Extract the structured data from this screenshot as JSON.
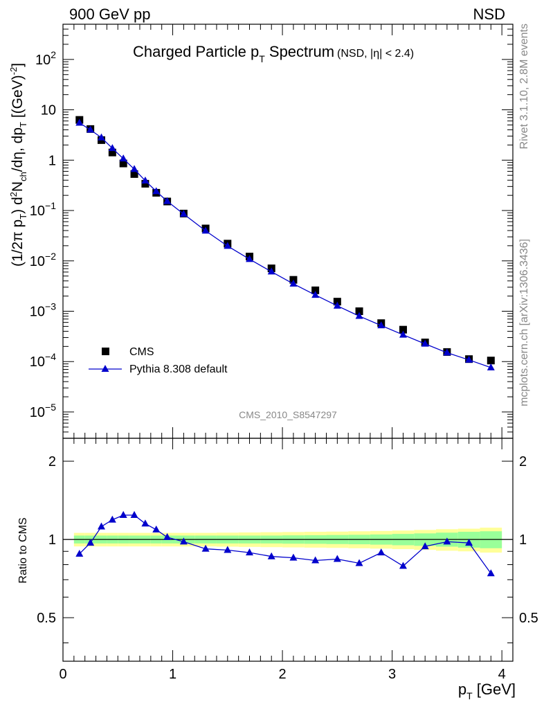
{
  "header": {
    "left": "900 GeV pp",
    "right": "NSD"
  },
  "side_labels": {
    "rivet": "Rivet 3.1.10,  2.8M events",
    "mcplots": "mcplots.cern.ch [arXiv:1306.3436]"
  },
  "chart_data": [
    {
      "type": "scatter",
      "title": "Charged Particle p_T Spectrum",
      "title_suffix": "(NSD, |η| < 2.4)",
      "analysis_label": "CMS_2010_S8547297",
      "ylabel": "(1/2π p_T) d²N_ch/dη, dp_T [(GeV)⁻²]",
      "xlim": [
        0,
        4.1
      ],
      "ylim": [
        3e-06,
        500
      ],
      "yscale": "log",
      "y_ticks": [
        {
          "value": 100.0,
          "label": "10^2"
        },
        {
          "value": 10,
          "label": "10"
        },
        {
          "value": 1,
          "label": "1"
        },
        {
          "value": 0.1,
          "label": "10^-1"
        },
        {
          "value": 0.01,
          "label": "10^-2"
        },
        {
          "value": 0.001,
          "label": "10^-3"
        },
        {
          "value": 0.0001,
          "label": "10^-4"
        },
        {
          "value": 1e-05,
          "label": "10^-5"
        }
      ],
      "legend_position": "bottom-left",
      "series": [
        {
          "name": "CMS",
          "marker": "square",
          "color": "#000000",
          "x": [
            0.15,
            0.25,
            0.35,
            0.45,
            0.55,
            0.65,
            0.75,
            0.85,
            0.95,
            1.1,
            1.3,
            1.5,
            1.7,
            1.9,
            2.1,
            2.3,
            2.5,
            2.7,
            2.9,
            3.1,
            3.3,
            3.5,
            3.7,
            3.9
          ],
          "y": [
            6.3,
            4.15,
            2.5,
            1.42,
            0.86,
            0.53,
            0.34,
            0.225,
            0.151,
            0.087,
            0.044,
            0.022,
            0.0122,
            0.0071,
            0.0042,
            0.0026,
            0.00155,
            0.001,
            0.00058,
            0.00043,
            0.00024,
            0.000155,
            0.000112,
            0.000105
          ]
        },
        {
          "name": "Pythia 8.308 default",
          "marker": "triangle",
          "color": "#0000cc",
          "x": [
            0.15,
            0.25,
            0.35,
            0.45,
            0.55,
            0.65,
            0.75,
            0.85,
            0.95,
            1.1,
            1.3,
            1.5,
            1.7,
            1.9,
            2.1,
            2.3,
            2.5,
            2.7,
            2.9,
            3.1,
            3.3,
            3.5,
            3.7,
            3.9
          ],
          "y": [
            5.5,
            4.0,
            2.8,
            1.72,
            1.07,
            0.66,
            0.39,
            0.24,
            0.153,
            0.085,
            0.0395,
            0.0197,
            0.0108,
            0.0061,
            0.0035,
            0.0021,
            0.00128,
            0.0008,
            0.00052,
            0.00034,
            0.000225,
            0.00015,
            0.000108,
            7.6e-05
          ]
        }
      ]
    },
    {
      "type": "line",
      "ylabel": "Ratio to CMS",
      "xlabel": "p_T [GeV]",
      "xlim": [
        0,
        4.1
      ],
      "ylim": [
        0.34,
        2.45
      ],
      "yscale": "log",
      "x_ticks": [
        0,
        1,
        2,
        3,
        4
      ],
      "y_ticks": [
        {
          "value": 0.5,
          "label": "0.5"
        },
        {
          "value": 1,
          "label": "1"
        },
        {
          "value": 2,
          "label": "2"
        }
      ],
      "band_x_edges": [
        0.1,
        0.2,
        0.3,
        0.4,
        0.5,
        0.6,
        0.7,
        0.8,
        0.9,
        1.0,
        1.2,
        1.4,
        1.6,
        1.8,
        2.0,
        2.2,
        2.4,
        2.6,
        2.8,
        3.0,
        3.2,
        3.4,
        3.6,
        3.8,
        4.0
      ],
      "band_stat_halfwidth": [
        0.035,
        0.035,
        0.035,
        0.035,
        0.035,
        0.035,
        0.035,
        0.035,
        0.035,
        0.035,
        0.035,
        0.035,
        0.035,
        0.035,
        0.037,
        0.038,
        0.04,
        0.042,
        0.045,
        0.05,
        0.055,
        0.062,
        0.07,
        0.075
      ],
      "band_total_halfwidth": [
        0.06,
        0.06,
        0.06,
        0.06,
        0.06,
        0.06,
        0.06,
        0.06,
        0.06,
        0.06,
        0.06,
        0.062,
        0.064,
        0.066,
        0.068,
        0.07,
        0.072,
        0.075,
        0.078,
        0.082,
        0.088,
        0.095,
        0.1,
        0.11
      ],
      "band_colors": {
        "stat": "#99ff99",
        "total": "#ffff99"
      },
      "series": [
        {
          "name": "Pythia 8.308 default",
          "color": "#0000cc",
          "x": [
            0.15,
            0.25,
            0.35,
            0.45,
            0.55,
            0.65,
            0.75,
            0.85,
            0.95,
            1.1,
            1.3,
            1.5,
            1.7,
            1.9,
            2.1,
            2.3,
            2.5,
            2.7,
            2.9,
            3.1,
            3.3,
            3.5,
            3.7,
            3.9
          ],
          "y": [
            0.88,
            0.97,
            1.12,
            1.19,
            1.24,
            1.24,
            1.15,
            1.09,
            1.02,
            0.98,
            0.92,
            0.91,
            0.89,
            0.86,
            0.85,
            0.83,
            0.84,
            0.81,
            0.89,
            0.79,
            0.94,
            0.98,
            0.97,
            0.74
          ]
        }
      ]
    }
  ]
}
